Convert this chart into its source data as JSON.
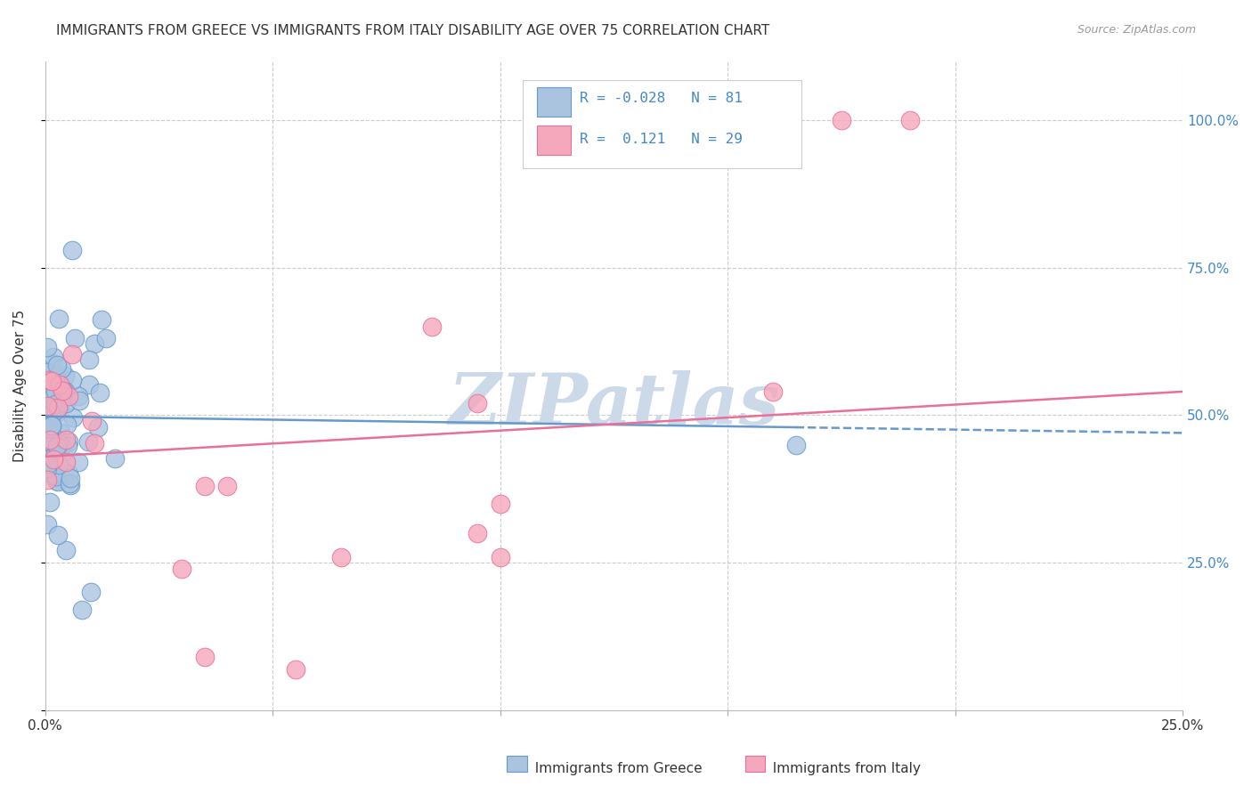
{
  "title": "IMMIGRANTS FROM GREECE VS IMMIGRANTS FROM ITALY DISABILITY AGE OVER 75 CORRELATION CHART",
  "source": "Source: ZipAtlas.com",
  "ylabel": "Disability Age Over 75",
  "xlabel_greece": "Immigrants from Greece",
  "xlabel_italy": "Immigrants from Italy",
  "R_greece": -0.028,
  "N_greece": 81,
  "R_italy": 0.121,
  "N_italy": 29,
  "xlim": [
    0.0,
    0.25
  ],
  "ylim": [
    0.0,
    1.1
  ],
  "color_greece": "#aac4e0",
  "color_italy": "#f5a8bc",
  "edge_greece": "#6699cc",
  "edge_italy": "#e8709a",
  "line_greece": "#6699cc",
  "line_italy": "#e8709a",
  "background_color": "#ffffff",
  "watermark": "ZIPatlas",
  "watermark_color": "#ccd9e8",
  "grid_color": "#cccccc",
  "title_color": "#333333",
  "axis_label_color": "#333333",
  "right_tick_color": "#4488cc",
  "source_color": "#999999"
}
